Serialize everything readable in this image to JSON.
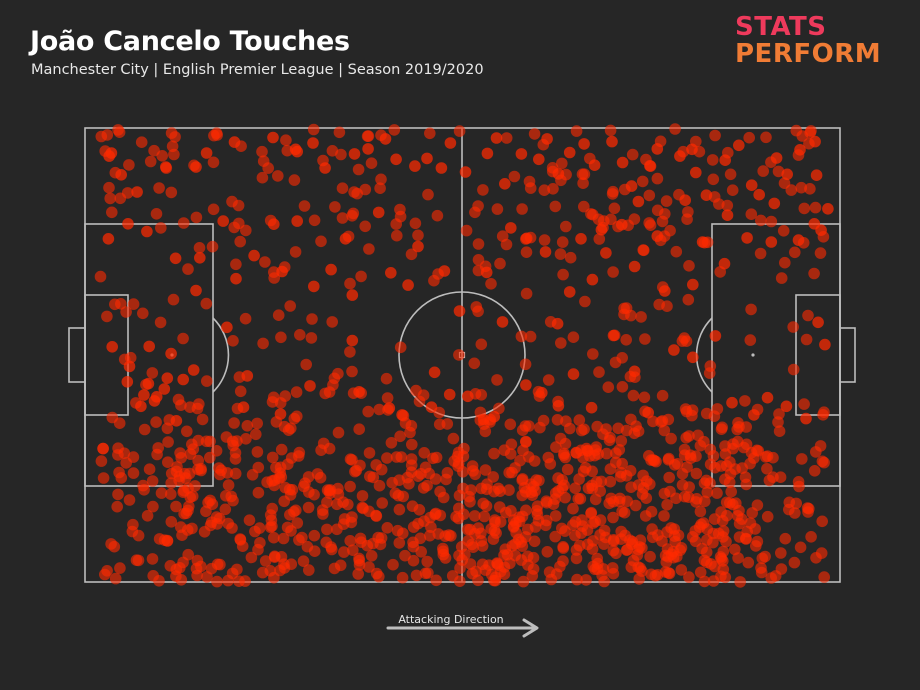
{
  "header": {
    "title": "João Cancelo Touches",
    "subtitle": "Manchester City | English Premier League | Season 2019/2020"
  },
  "logo": {
    "line1": "STATS",
    "line2": "PERFORM"
  },
  "direction_label": "Attacking Direction",
  "colors": {
    "background": "#262626",
    "pitch_lines": "#bdbdbd",
    "touch_dot": "#ff2a00",
    "logo_top": "#ee3a5c",
    "logo_bottom": "#f07c35"
  },
  "chart_data": {
    "type": "scatter",
    "title": "João Cancelo Touches",
    "pitch_units": "x 0-100 (own goal → opponent goal), y 0-100 (top touchline → bottom touchline)",
    "x_range": [
      0,
      100
    ],
    "y_range": [
      0,
      100
    ],
    "series": [
      {
        "clusters": [
          {
            "x_range": [
              2,
              98
            ],
            "y_range": [
              64,
              100
            ],
            "count": 880
          },
          {
            "x_range": [
              2,
              98
            ],
            "y_range": [
              0,
              64
            ],
            "count": 360
          }
        ],
        "points": [
          [
            3.5,
            5.5
          ],
          [
            3.2,
            6.2
          ],
          [
            4.8,
            10.3
          ],
          [
            6.9,
            14.1
          ],
          [
            10.7,
            8.6
          ],
          [
            14.7,
            8.6
          ],
          [
            16.1,
            5.5
          ],
          [
            19.8,
            3.1
          ],
          [
            24.9,
            2.1
          ],
          [
            27.9,
            4.7
          ],
          [
            28.1,
            5.2
          ],
          [
            30.2,
            3.3
          ],
          [
            31.8,
            8.8
          ],
          [
            35.7,
            5.7
          ],
          [
            37.5,
            4.6
          ],
          [
            39.8,
            2.4
          ],
          [
            41.2,
            6.9
          ],
          [
            43.7,
            8.4
          ],
          [
            45.3,
            6.7
          ],
          [
            47.2,
            8.8
          ],
          [
            48.4,
            3.3
          ],
          [
            50.4,
            9.7
          ],
          [
            53.3,
            5.6
          ],
          [
            54.5,
            2.2
          ],
          [
            57.8,
            5.7
          ],
          [
            60.1,
            6.9
          ],
          [
            61.2,
            2.4
          ],
          [
            62.7,
            10.1
          ],
          [
            64.2,
            5.4
          ],
          [
            66.1,
            3.5
          ],
          [
            67.5,
            8.2
          ],
          [
            69.8,
            3.0
          ],
          [
            71.2,
            7.6
          ],
          [
            72.4,
            12.8
          ],
          [
            74.9,
            8.4
          ],
          [
            75.8,
            4.6
          ],
          [
            78.8,
            6.2
          ],
          [
            80.4,
            4.7
          ],
          [
            80.9,
            9.8
          ],
          [
            82.3,
            14.8
          ],
          [
            84.8,
            7.1
          ],
          [
            86.6,
            3.8
          ],
          [
            88.3,
            12.6
          ],
          [
            89.3,
            14.7
          ],
          [
            91.6,
            6.6
          ],
          [
            93.0,
            10.2
          ],
          [
            94.7,
            4.8
          ],
          [
            96.7,
            3.0
          ],
          [
            96.9,
            10.4
          ],
          [
            98.4,
            17.8
          ],
          [
            3.1,
            24.4
          ],
          [
            5.7,
            21.1
          ],
          [
            8.2,
            22.8
          ],
          [
            12.0,
            28.7
          ],
          [
            14.7,
            35.8
          ],
          [
            15.2,
            28.6
          ],
          [
            18.3,
            20.5
          ],
          [
            20.0,
            33.2
          ],
          [
            22.4,
            28.1
          ],
          [
            25.0,
            21.2
          ],
          [
            26.1,
            31.6
          ],
          [
            28.1,
            20.5
          ],
          [
            30.3,
            34.9
          ],
          [
            32.6,
            31.2
          ],
          [
            34.5,
            24.4
          ],
          [
            35.4,
            36.8
          ],
          [
            38.9,
            18.6
          ],
          [
            40.5,
            31.9
          ],
          [
            42.8,
            34.6
          ],
          [
            44.1,
            26.1
          ],
          [
            47.6,
            31.5
          ],
          [
            49.6,
            40.3
          ],
          [
            53.2,
            31.8
          ],
          [
            55.3,
            42.7
          ],
          [
            56.4,
            22.0
          ],
          [
            58.5,
            24.3
          ],
          [
            61.0,
            27.3
          ],
          [
            62.6,
            43.1
          ],
          [
            64.2,
            36.1
          ],
          [
            65.7,
            24.4
          ],
          [
            67.2,
            33.4
          ],
          [
            69.0,
            27.5
          ],
          [
            71.1,
            21.3
          ],
          [
            72.8,
            30.5
          ],
          [
            75.8,
            23.8
          ],
          [
            76.8,
            35.9
          ],
          [
            80.5,
            34.5
          ],
          [
            81.8,
            25.1
          ],
          [
            84.7,
            29.9
          ],
          [
            87.7,
            24.2
          ],
          [
            90.9,
            25.1
          ],
          [
            94.5,
            24.7
          ],
          [
            97.5,
            22.5
          ],
          [
            96.6,
            21.1
          ],
          [
            91.3,
            16.6
          ],
          [
            85.1,
            19.2
          ],
          [
            79.5,
            15.9
          ],
          [
            73.3,
            16.2
          ],
          [
            68.4,
            22.4
          ],
          [
            55.6,
            12.3
          ],
          [
            3.6,
            48.2
          ],
          [
            5.9,
            52.5
          ],
          [
            8.5,
            48.1
          ],
          [
            10.9,
            55.1
          ],
          [
            11.4,
            49.7
          ],
          [
            13.0,
            55.4
          ],
          [
            14.4,
            53.3
          ],
          [
            18.8,
            43.9
          ],
          [
            21.0,
            61.5
          ],
          [
            21.5,
            54.6
          ],
          [
            25.9,
            63.0
          ],
          [
            29.8,
            56.8
          ],
          [
            35.4,
            46.8
          ],
          [
            36.3,
            58.1
          ],
          [
            40.3,
            61.7
          ],
          [
            42.0,
            63.2
          ],
          [
            45.9,
            61.5
          ],
          [
            46.3,
            53.8
          ],
          [
            48.3,
            58.7
          ],
          [
            50.7,
            59.1
          ],
          [
            52.8,
            64.2
          ],
          [
            54.2,
            63.6
          ],
          [
            58.4,
            56.6
          ],
          [
            60.5,
            58.3
          ],
          [
            62.7,
            61.2
          ],
          [
            64.7,
            54.2
          ],
          [
            67.1,
            61.6
          ],
          [
            70.0,
            45.7
          ],
          [
            72.8,
            53.6
          ],
          [
            74.6,
            62.7
          ],
          [
            78.0,
            48.9
          ],
          [
            80.5,
            50.5
          ],
          [
            83.5,
            45.8
          ],
          [
            85.7,
            60.5
          ],
          [
            88.6,
            63.2
          ],
          [
            90.4,
            59.4
          ],
          [
            92.9,
            61.3
          ],
          [
            95.5,
            64.0
          ],
          [
            97.1,
            42.8
          ],
          [
            98.0,
            47.7
          ],
          [
            10.5,
            57.5
          ],
          [
            9.2,
            60.1
          ],
          [
            7.8,
            58.8
          ],
          [
            7.4,
            61.3
          ],
          [
            8.4,
            56.3
          ],
          [
            5.6,
            55.9
          ],
          [
            12.1,
            64.5
          ],
          [
            9.5,
            59.2
          ]
        ]
      }
    ],
    "annotations": [
      "Attacking Direction →"
    ]
  }
}
